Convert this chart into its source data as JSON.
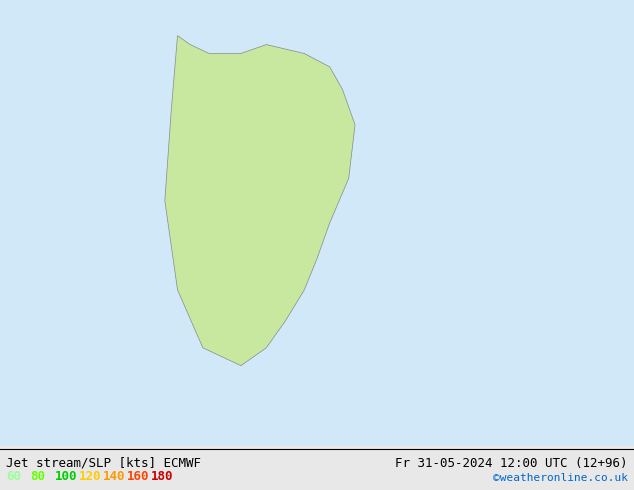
{
  "title_left": "Jet stream/SLP [kts] ECMWF",
  "title_right": "Fr 31-05-2024 12:00 UTC (12+96)",
  "credit": "©weatheronline.co.uk",
  "legend_values": [
    60,
    80,
    100,
    120,
    140,
    160,
    180
  ],
  "legend_colors": [
    "#99ff99",
    "#66ff00",
    "#00cc00",
    "#ffcc00",
    "#ff9900",
    "#ff4400",
    "#cc0000"
  ],
  "bg_color": "#e8e8e8",
  "map_bg": "#e8e8e8",
  "fig_width": 6.34,
  "fig_height": 4.9,
  "dpi": 100
}
